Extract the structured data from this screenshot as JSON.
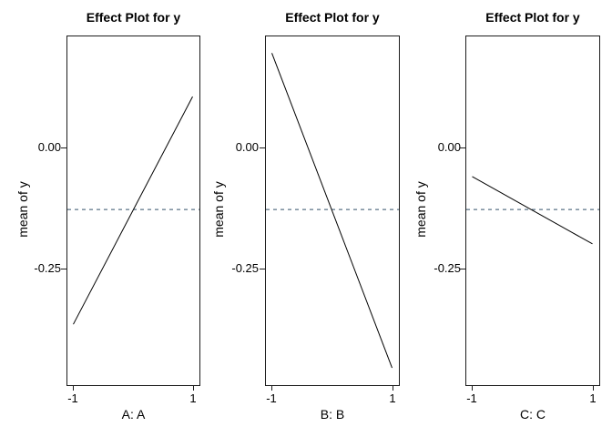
{
  "figure": {
    "background": "#ffffff",
    "text_color": "#000000",
    "box_color": "#1c1c1c"
  },
  "chart_data": {
    "type": "line",
    "layout": "three side-by-side main-effect panels (R effects-style plot)",
    "grid": false,
    "legend": false,
    "panels": [
      {
        "title": "Effect Plot for y",
        "xlabel": "A: A",
        "ylabel": "mean of y",
        "x": [
          -1,
          1
        ],
        "y": [
          -0.365,
          0.105
        ]
      },
      {
        "title": "Effect Plot for y",
        "xlabel": "B: B",
        "ylabel": "mean of y",
        "x": [
          -1,
          1
        ],
        "y": [
          0.195,
          -0.455
        ]
      },
      {
        "title": "Effect Plot for y",
        "xlabel": "C: C",
        "ylabel": "mean of y",
        "x": [
          -1,
          1
        ],
        "y": [
          -0.06,
          -0.199
        ]
      }
    ],
    "reference_line": {
      "value": -0.128,
      "style": "dashed",
      "color": "#35506B"
    },
    "series_color": "#000000",
    "x_ticks": [
      -1,
      1
    ],
    "x_tick_labels": [
      "-1",
      "1"
    ],
    "y_ticks": [
      0,
      -0.25
    ],
    "y_tick_labels": [
      "0.00",
      "-0.25"
    ],
    "xlim": [
      -1.11,
      1.11
    ],
    "ylim": [
      -0.48,
      0.23
    ]
  }
}
